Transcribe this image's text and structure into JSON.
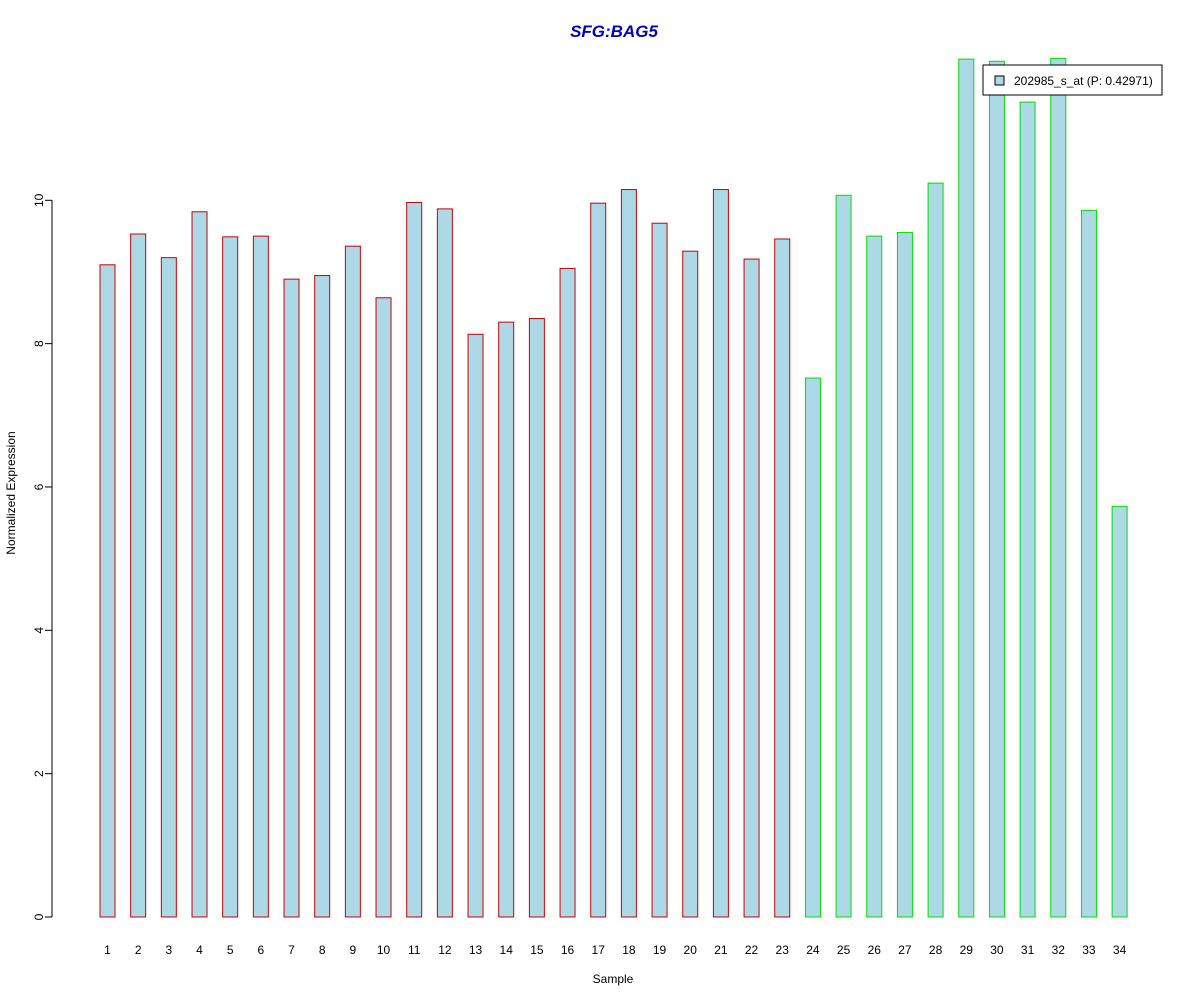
{
  "chart_data": {
    "type": "bar",
    "title": "SFG:BAG5",
    "xlabel": "Sample",
    "ylabel": "Normalized Expression",
    "ylim": [
      0,
      12
    ],
    "yticks": [
      0,
      2,
      4,
      6,
      8,
      10
    ],
    "categories": [
      "1",
      "2",
      "3",
      "4",
      "5",
      "6",
      "7",
      "8",
      "9",
      "10",
      "11",
      "12",
      "13",
      "14",
      "15",
      "16",
      "17",
      "18",
      "19",
      "20",
      "21",
      "22",
      "23",
      "24",
      "25",
      "26",
      "27",
      "28",
      "29",
      "30",
      "31",
      "32",
      "33",
      "34"
    ],
    "series": [
      {
        "name": "202985_s_at (P: 0.42971)",
        "values": [
          9.1,
          9.53,
          9.2,
          9.84,
          9.49,
          9.5,
          8.9,
          8.95,
          9.36,
          8.64,
          9.97,
          9.88,
          8.13,
          8.3,
          8.35,
          9.05,
          9.96,
          10.15,
          9.68,
          9.29,
          10.15,
          9.18,
          9.46,
          7.52,
          10.07,
          9.5,
          9.55,
          10.24,
          11.97,
          11.94,
          11.37,
          11.98,
          9.86,
          5.73
        ]
      }
    ],
    "groups": [
      {
        "samples": [
          1,
          23
        ],
        "border_color": "#cc0000"
      },
      {
        "samples": [
          24,
          34
        ],
        "border_color": "#00e000"
      }
    ],
    "bar_fill": "#add8e6",
    "title_color": "#0000cc",
    "legend_position": "top-right",
    "grid": false
  }
}
